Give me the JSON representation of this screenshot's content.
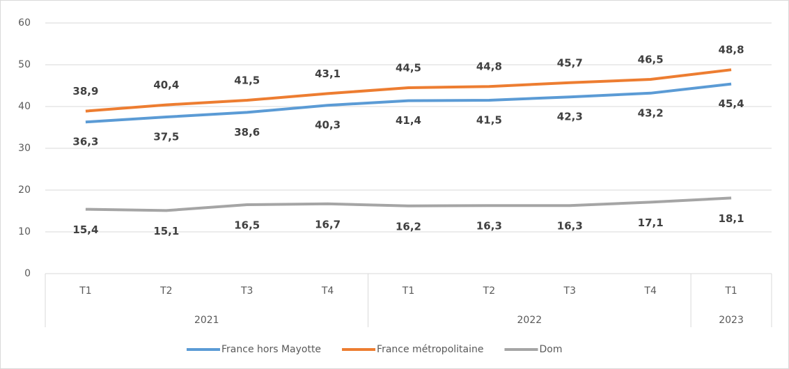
{
  "chart_data": {
    "type": "line",
    "categories": [
      "T1",
      "T2",
      "T3",
      "T4",
      "T1",
      "T2",
      "T3",
      "T4",
      "T1"
    ],
    "year": [
      "2021",
      "2021",
      "2021",
      "2021",
      "2022",
      "2022",
      "2022",
      "2022",
      "2023"
    ],
    "series": [
      {
        "name": "France hors Mayotte",
        "color": "#5b9bd5",
        "values": [
          36.3,
          37.5,
          38.6,
          40.3,
          41.4,
          41.5,
          42.3,
          43.2,
          45.4
        ],
        "value_labels": [
          "36,3",
          "37,5",
          "38,6",
          "40,3",
          "41,4",
          "41,5",
          "42,3",
          "43,2",
          "45,4"
        ]
      },
      {
        "name": "France métropolitaine",
        "color": "#ed7d31",
        "values": [
          38.9,
          40.4,
          41.5,
          43.1,
          44.5,
          44.8,
          45.7,
          46.5,
          48.8
        ],
        "value_labels": [
          "38,9",
          "40,4",
          "41,5",
          "43,1",
          "44,5",
          "44,8",
          "45,7",
          "46,5",
          "48,8"
        ]
      },
      {
        "name": "Dom",
        "color": "#a5a5a5",
        "values": [
          15.4,
          15.1,
          16.5,
          16.7,
          16.2,
          16.3,
          16.3,
          17.1,
          18.1
        ],
        "value_labels": [
          "15,4",
          "15,1",
          "16,5",
          "16,7",
          "16,2",
          "16,3",
          "16,3",
          "17,1",
          "18,1"
        ]
      }
    ],
    "ylim": [
      0,
      60
    ],
    "yticks": [
      0,
      10,
      20,
      30,
      40,
      50,
      60
    ],
    "grid": true,
    "legend": "bottom"
  }
}
